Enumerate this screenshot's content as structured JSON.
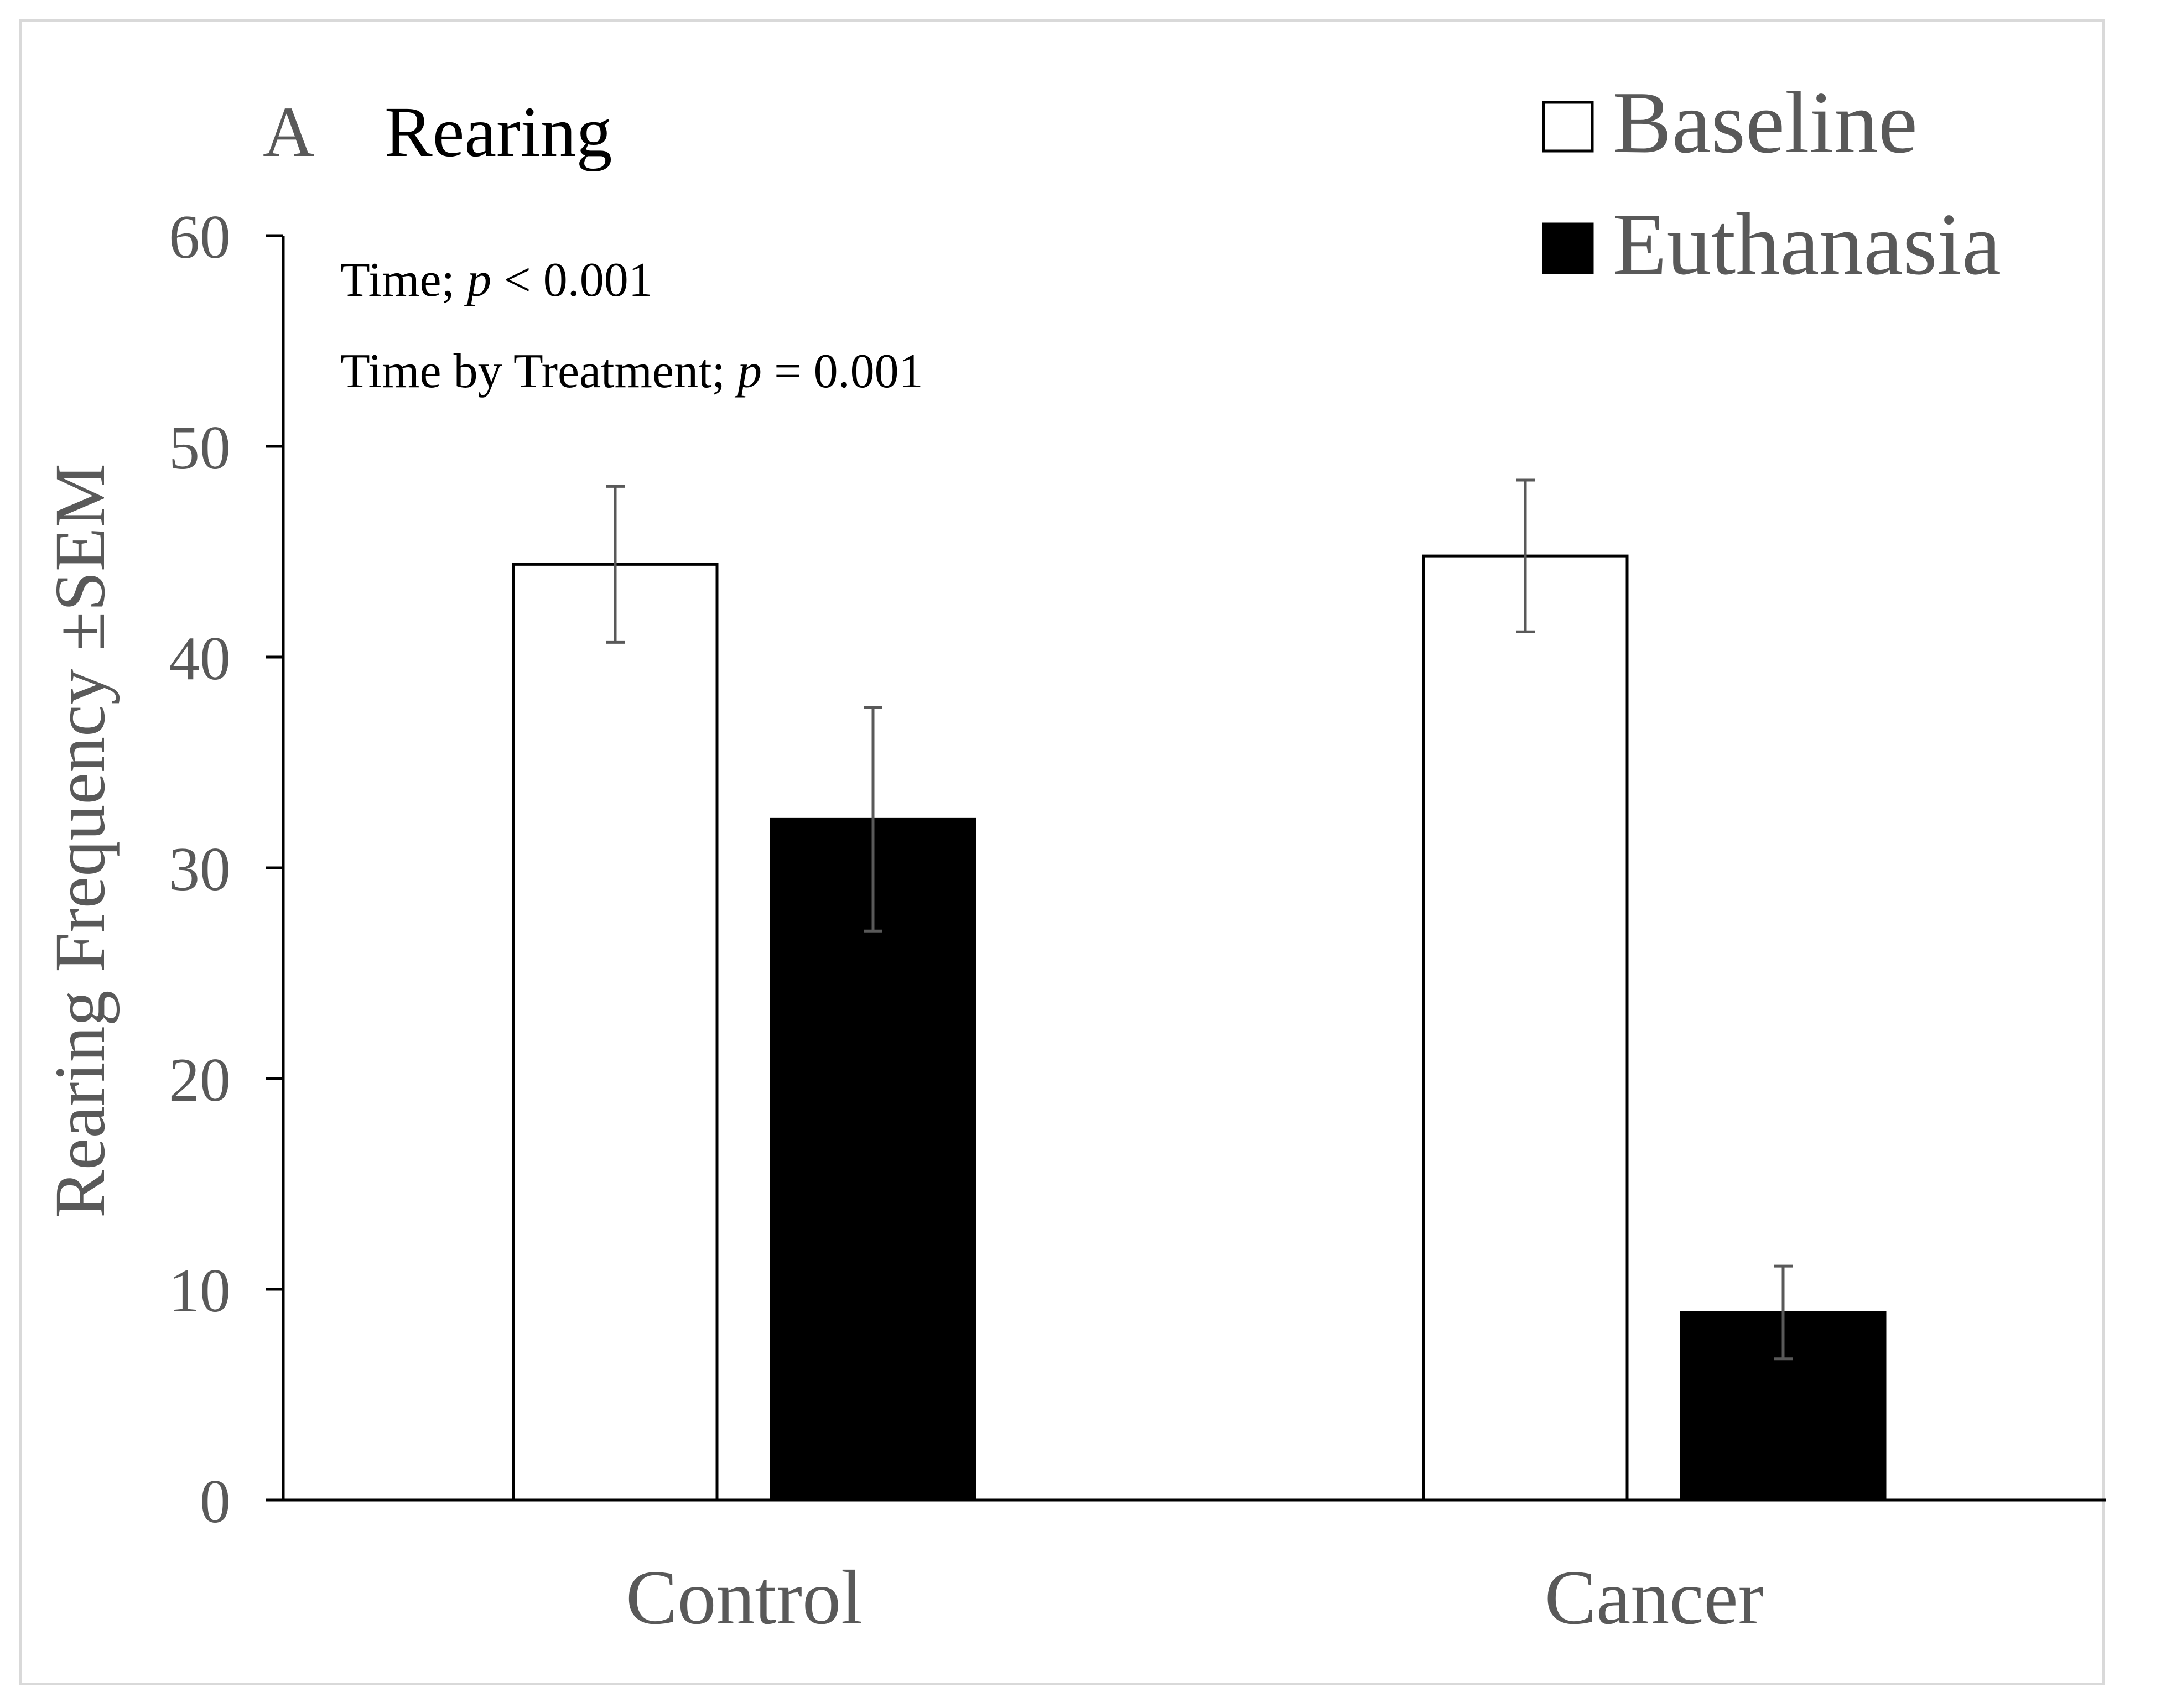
{
  "chart_data": {
    "type": "bar",
    "panel_label": "A",
    "title": "Rearing",
    "ylabel": "Rearing Frequency ±SEM",
    "xlabel": "",
    "categories": [
      "Control",
      "Cancer"
    ],
    "ylim": [
      0,
      60
    ],
    "yticks": [
      0,
      10,
      20,
      30,
      40,
      50,
      60
    ],
    "grid": false,
    "legend_position": "top-right",
    "series": [
      {
        "name": "Baseline",
        "fill": "#ffffff",
        "stroke": "#000000",
        "values": [
          44.4,
          44.8
        ],
        "sem": [
          3.7,
          3.6
        ]
      },
      {
        "name": "Euthanasia",
        "fill": "#000000",
        "stroke": "#000000",
        "values": [
          32.3,
          8.9
        ],
        "sem": [
          5.3,
          2.2
        ]
      }
    ],
    "annotations": [
      {
        "label": "Time; ",
        "italic": "p",
        "rest": " < 0.001"
      },
      {
        "label": "Time by Treatment; ",
        "italic": "p",
        "rest": " = 0.001"
      }
    ],
    "colors": {
      "axis": "#000000",
      "tick_text": "#595959",
      "title_text": "#000000",
      "error_bar": "#595959"
    }
  }
}
